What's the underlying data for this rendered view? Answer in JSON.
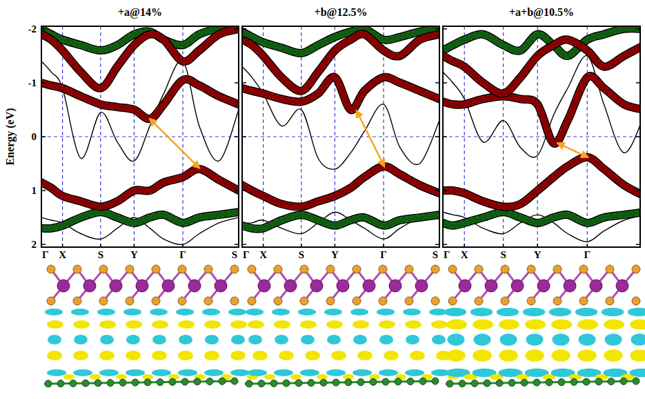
{
  "chart_data": [
    {
      "type": "line",
      "title": "+a@14%",
      "y_label": "Energy (eV)",
      "x": [
        0,
        0.05,
        0.107,
        0.2,
        0.3,
        0.385,
        0.47,
        0.55,
        0.62,
        0.717,
        0.8,
        0.9,
        1.0
      ],
      "xlim": [
        0,
        1.0
      ],
      "ylim": [
        2.05,
        -2.05
      ],
      "xticks": [
        {
          "value": 0,
          "label": "Γ"
        },
        {
          "value": 0.107,
          "label": "X"
        },
        {
          "value": 0.3,
          "label": "S"
        },
        {
          "value": 0.47,
          "label": "Y"
        },
        {
          "value": 0.717,
          "label": "Γ"
        },
        {
          "value": 1.0,
          "label": "S"
        }
      ],
      "yticks": [
        -2,
        -1,
        0,
        1,
        2
      ],
      "grid": true,
      "hlines": [
        0
      ],
      "tick_labels": true,
      "series": [
        {
          "color": "#000000",
          "line_style": "solid",
          "values": [
            -1.4,
            -1.2,
            -0.9,
            0.4,
            -0.45,
            0.1,
            0.45,
            -0.2,
            -0.8,
            -1.4,
            -0.2,
            0.45,
            -0.5
          ]
        },
        {
          "color": "#000000",
          "line_style": "solid",
          "values": [
            1.5,
            1.55,
            1.6,
            1.8,
            1.9,
            1.7,
            1.5,
            1.7,
            1.9,
            2.0,
            1.8,
            1.6,
            1.5
          ]
        },
        {
          "color": "#1a8c1a",
          "line_style": "fat",
          "values": [
            1.7,
            1.7,
            1.65,
            1.5,
            1.4,
            1.5,
            1.6,
            1.5,
            1.45,
            1.6,
            1.5,
            1.45,
            1.4
          ]
        },
        {
          "color": "#1a8c1a",
          "line_style": "fat",
          "values": [
            -2.0,
            -1.9,
            -1.8,
            -1.7,
            -1.6,
            -1.7,
            -1.9,
            -1.95,
            -1.8,
            -1.7,
            -1.9,
            -2.0,
            -2.0
          ]
        },
        {
          "color": "#cc0000",
          "line_style": "fat",
          "values": [
            -1.0,
            -0.95,
            -0.9,
            -0.75,
            -0.6,
            -0.55,
            -0.5,
            -0.33,
            -0.6,
            -1.05,
            -0.95,
            -0.75,
            -0.6
          ]
        },
        {
          "color": "#cc0000",
          "line_style": "fat",
          "values": [
            0.85,
            0.95,
            1.1,
            1.2,
            1.3,
            1.2,
            1.0,
            1.0,
            0.85,
            0.75,
            0.6,
            0.8,
            1.0
          ]
        },
        {
          "color": "#cc0000",
          "line_style": "fat",
          "values": [
            -1.9,
            -1.8,
            -1.6,
            -1.2,
            -0.9,
            -1.3,
            -1.7,
            -1.9,
            -1.8,
            -1.4,
            -1.6,
            -1.9,
            -2.0
          ]
        }
      ],
      "arrow": {
        "x": [
          0.55,
          0.8
        ],
        "y": [
          -0.33,
          0.58
        ]
      }
    },
    {
      "type": "line",
      "title": "+b@12.5%",
      "x": [
        0,
        0.05,
        0.107,
        0.2,
        0.3,
        0.385,
        0.47,
        0.55,
        0.62,
        0.717,
        0.8,
        0.9,
        1.0
      ],
      "xlim": [
        0,
        1.0
      ],
      "ylim": [
        2.05,
        -2.05
      ],
      "xticks": [
        {
          "value": 0,
          "label": "Γ"
        },
        {
          "value": 0.107,
          "label": "X"
        },
        {
          "value": 0.3,
          "label": "S"
        },
        {
          "value": 0.47,
          "label": "Y"
        },
        {
          "value": 0.717,
          "label": "Γ"
        },
        {
          "value": 1.0,
          "label": "S"
        }
      ],
      "yticks": [
        -2,
        -1,
        0,
        1,
        2
      ],
      "grid": true,
      "hlines": [
        0
      ],
      "tick_labels": "x",
      "series": [
        {
          "color": "#000000",
          "line_style": "solid",
          "values": [
            -1.3,
            -1.1,
            -0.8,
            -0.2,
            -0.5,
            0.4,
            0.6,
            0.3,
            -0.1,
            -0.6,
            0.2,
            0.5,
            -0.3
          ]
        },
        {
          "color": "#000000",
          "line_style": "solid",
          "values": [
            1.6,
            1.6,
            1.55,
            1.7,
            1.8,
            1.6,
            1.4,
            1.55,
            1.7,
            1.9,
            1.7,
            1.5,
            1.4
          ]
        },
        {
          "color": "#1a8c1a",
          "line_style": "fat",
          "values": [
            1.65,
            1.7,
            1.7,
            1.55,
            1.45,
            1.55,
            1.65,
            1.55,
            1.5,
            1.65,
            1.55,
            1.5,
            1.45
          ]
        },
        {
          "color": "#1a8c1a",
          "line_style": "fat",
          "values": [
            -1.95,
            -1.85,
            -1.75,
            -1.65,
            -1.55,
            -1.7,
            -1.85,
            -1.95,
            -2.0,
            -1.8,
            -1.85,
            -1.95,
            -2.0
          ]
        },
        {
          "color": "#cc0000",
          "line_style": "fat",
          "values": [
            -0.9,
            -0.85,
            -0.8,
            -0.7,
            -0.65,
            -0.8,
            -1.1,
            -0.5,
            -0.85,
            -1.1,
            -1.0,
            -0.85,
            -0.7
          ]
        },
        {
          "color": "#cc0000",
          "line_style": "fat",
          "values": [
            0.9,
            1.0,
            1.1,
            1.25,
            1.3,
            1.2,
            1.1,
            0.95,
            0.75,
            0.55,
            0.7,
            0.9,
            1.05
          ]
        },
        {
          "color": "#cc0000",
          "line_style": "fat",
          "values": [
            -1.8,
            -1.7,
            -1.5,
            -1.1,
            -0.85,
            -1.2,
            -1.6,
            -1.8,
            -1.9,
            -1.6,
            -1.5,
            -1.8,
            -1.9
          ]
        }
      ],
      "arrow": {
        "x": [
          0.58,
          0.72
        ],
        "y": [
          -0.48,
          0.55
        ]
      }
    },
    {
      "type": "line",
      "title": "+a+b@10.5%",
      "x": [
        0,
        0.05,
        0.107,
        0.2,
        0.3,
        0.385,
        0.47,
        0.55,
        0.62,
        0.717,
        0.8,
        0.9,
        1.0
      ],
      "xlim": [
        0,
        0.98
      ],
      "ylim": [
        2.05,
        -2.05
      ],
      "xticks": [
        {
          "value": 0,
          "label": "Γ"
        },
        {
          "value": 0.107,
          "label": "X"
        },
        {
          "value": 0.3,
          "label": "S"
        },
        {
          "value": 0.47,
          "label": "Y"
        },
        {
          "value": 0.717,
          "label": "Γ"
        }
      ],
      "yticks": [
        -2,
        -1,
        0,
        1,
        2
      ],
      "grid": true,
      "hlines": [
        0
      ],
      "tick_labels": "x",
      "series": [
        {
          "color": "#000000",
          "line_style": "solid",
          "values": [
            -1.2,
            -1.0,
            -0.7,
            0.1,
            -0.3,
            0.2,
            0.35,
            -0.4,
            -0.9,
            -1.5,
            -0.6,
            0.3,
            -0.4
          ]
        },
        {
          "color": "#000000",
          "line_style": "solid",
          "values": [
            1.4,
            1.45,
            1.5,
            1.7,
            1.8,
            1.6,
            1.45,
            1.6,
            1.8,
            1.95,
            1.75,
            1.55,
            1.45
          ]
        },
        {
          "color": "#1a8c1a",
          "line_style": "fat",
          "values": [
            1.6,
            1.65,
            1.6,
            1.5,
            1.4,
            1.5,
            1.6,
            1.5,
            1.45,
            1.6,
            1.5,
            1.45,
            1.4
          ]
        },
        {
          "color": "#1a8c1a",
          "line_style": "fat",
          "values": [
            -1.6,
            -1.7,
            -1.8,
            -1.9,
            -1.7,
            -1.6,
            -1.9,
            -1.7,
            -1.5,
            -1.8,
            -1.9,
            -2.0,
            -2.0
          ]
        },
        {
          "color": "#cc0000",
          "line_style": "fat",
          "values": [
            -0.65,
            -0.6,
            -0.6,
            -0.7,
            -0.75,
            -0.7,
            -0.6,
            0.12,
            -0.3,
            -1.1,
            -0.9,
            -0.6,
            -0.5
          ]
        },
        {
          "color": "#cc0000",
          "line_style": "fat",
          "values": [
            1.0,
            1.0,
            1.05,
            1.2,
            1.3,
            1.25,
            1.0,
            0.75,
            0.55,
            0.38,
            0.6,
            0.9,
            1.1
          ]
        },
        {
          "color": "#cc0000",
          "line_style": "fat",
          "values": [
            -1.5,
            -1.4,
            -1.3,
            -1.0,
            -0.8,
            -1.1,
            -1.5,
            -1.7,
            -1.8,
            -1.6,
            -1.3,
            -1.5,
            -1.7
          ]
        }
      ],
      "arrow": {
        "x": [
          0.57,
          0.72
        ],
        "y": [
          0.12,
          0.38
        ]
      }
    }
  ]
}
